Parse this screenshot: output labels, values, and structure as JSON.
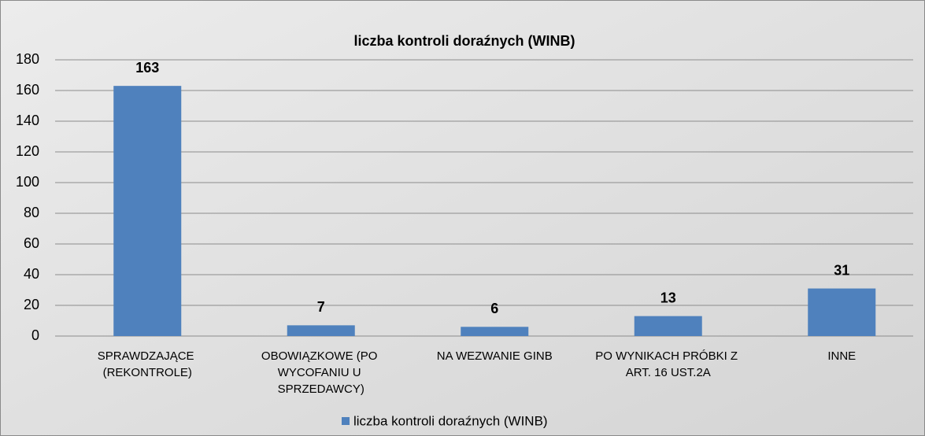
{
  "chart_data": {
    "type": "bar",
    "title": "liczba kontroli doraźnych (WINB)",
    "categories": [
      "SPRAWDZAJĄCE (REKONTROLE)",
      "OBOWIĄZKOWE (PO WYCOFANIU U SPRZEDAWCY)",
      "NA WEZWANIE GINB",
      "PO WYNIKACH PRÓBKI Z ART. 16 UST.2A",
      "INNE"
    ],
    "series": [
      {
        "name": "liczba kontroli doraźnych (WINB)",
        "color": "#4f81bd",
        "values": [
          163,
          7,
          6,
          13,
          31
        ]
      }
    ],
    "ylim": [
      0,
      180
    ],
    "yticks": [
      0,
      20,
      40,
      60,
      80,
      100,
      120,
      140,
      160,
      180
    ],
    "grid": true,
    "legend": "bottom"
  }
}
